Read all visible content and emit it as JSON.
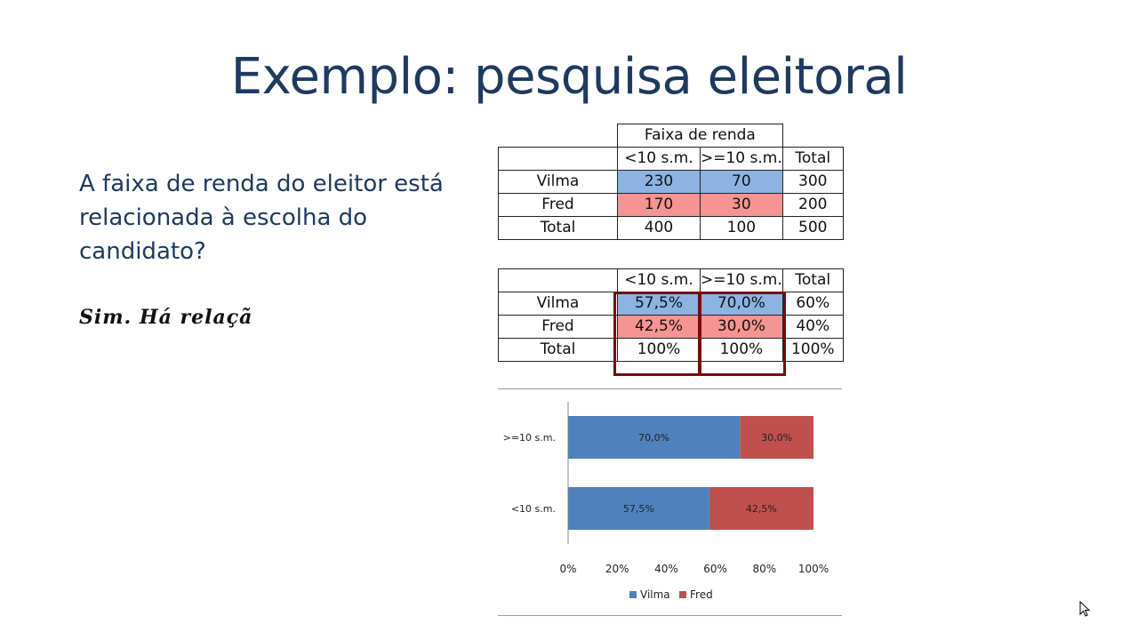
{
  "slide": {
    "title": "Exemplo: pesquisa eleitoral",
    "question_lines": [
      "A faixa de renda do eleitor está",
      "relacionada à escolha do",
      "candidato?"
    ],
    "answer": "Sim. Há relaçã"
  },
  "counts_table": {
    "group_header": "Faixa de renda",
    "columns": [
      "<10 s.m.",
      ">=10 s.m.",
      "Total"
    ],
    "rows": [
      {
        "label": "Vilma",
        "values": [
          "230",
          "70",
          "300"
        ]
      },
      {
        "label": "Fred",
        "values": [
          "170",
          "30",
          "200"
        ]
      },
      {
        "label": "Total",
        "values": [
          "400",
          "100",
          "500"
        ]
      }
    ]
  },
  "percent_table": {
    "columns": [
      "<10 s.m.",
      ">=10 s.m.",
      "Total"
    ],
    "rows": [
      {
        "label": "Vilma",
        "values": [
          "57,5%",
          "70,0%",
          "60%"
        ]
      },
      {
        "label": "Fred",
        "values": [
          "42,5%",
          "30,0%",
          "40%"
        ]
      },
      {
        "label": "Total",
        "values": [
          "100%",
          "100%",
          "100%"
        ]
      }
    ]
  },
  "colors": {
    "vilma": "#4f81bd",
    "fred": "#c0504d",
    "vilma_cell": "#8db3e2",
    "fred_cell": "#f59492",
    "title": "#1f3a60",
    "highlight_box": "#7a0b0b"
  },
  "chart_data": {
    "type": "bar",
    "orientation": "horizontal",
    "stacked": "percent",
    "categories": [
      ">=10 s.m.",
      "<10 s.m."
    ],
    "series": [
      {
        "name": "Vilma",
        "values": [
          70.0,
          57.5
        ],
        "labels": [
          "70,0%",
          "57,5%"
        ]
      },
      {
        "name": "Fred",
        "values": [
          30.0,
          42.5
        ],
        "labels": [
          "30,0%",
          "42,5%"
        ]
      }
    ],
    "xlim": [
      0,
      100
    ],
    "xticks": [
      "0%",
      "20%",
      "40%",
      "60%",
      "80%",
      "100%"
    ],
    "grid": false,
    "legend": "bottom"
  }
}
